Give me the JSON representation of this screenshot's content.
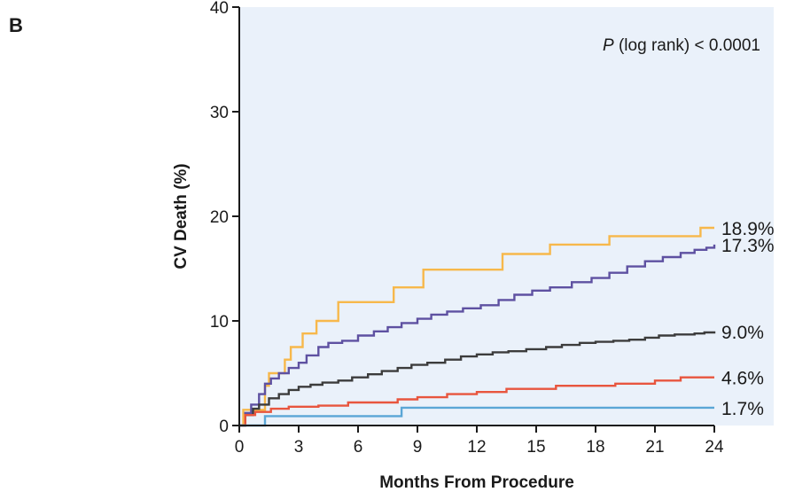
{
  "panel_label": "B",
  "chart_data": {
    "type": "line",
    "step": true,
    "title": "",
    "xlabel": "Months From Procedure",
    "ylabel": "CV Death (%)",
    "xlim": [
      0,
      27
    ],
    "ylim": [
      0,
      40
    ],
    "xticks": [
      0,
      3,
      6,
      9,
      12,
      15,
      18,
      21,
      24
    ],
    "yticks": [
      0,
      10,
      20,
      30,
      40
    ],
    "x_tick_labels": [
      "0",
      "3",
      "6",
      "9",
      "12",
      "15",
      "18",
      "21",
      "24"
    ],
    "y_tick_labels": [
      "0",
      "10",
      "20",
      "30",
      "40"
    ],
    "plot_background": "#eaf1fa",
    "grid": false,
    "annotation": {
      "italic_part": "P",
      "rest": " (log rank) < 0.0001"
    },
    "series": [
      {
        "color": "#f7b84b",
        "end_label": "18.9%",
        "x": [
          0,
          0.2,
          0.5,
          1.0,
          1.3,
          1.5,
          2.0,
          2.3,
          2.6,
          3.0,
          3.2,
          3.5,
          3.9,
          4.4,
          5.0,
          5.7,
          6.1,
          6.6,
          7.3,
          7.8,
          8.5,
          9.3,
          10.2,
          11.0,
          12.0,
          13.0,
          13.3,
          14.5,
          15.7,
          17.0,
          18.0,
          18.7,
          19.5,
          21.0,
          23.3,
          24.0
        ],
        "y": [
          0,
          1.5,
          1.5,
          1.5,
          3.8,
          5.0,
          5.0,
          6.3,
          7.5,
          7.5,
          8.8,
          8.8,
          10.0,
          10.0,
          11.8,
          11.8,
          11.8,
          11.8,
          11.8,
          13.2,
          13.2,
          14.9,
          14.9,
          14.9,
          14.9,
          14.9,
          16.4,
          16.4,
          17.3,
          17.3,
          17.3,
          18.1,
          18.1,
          18.1,
          18.9,
          18.9
        ]
      },
      {
        "color": "#5e51a1",
        "end_label": "17.3%",
        "x": [
          0,
          0.3,
          0.6,
          1.0,
          1.3,
          1.6,
          2.0,
          2.5,
          3.0,
          3.4,
          4.0,
          4.5,
          5.2,
          6.0,
          6.8,
          7.5,
          8.2,
          9.0,
          9.7,
          10.5,
          11.3,
          12.2,
          13.1,
          13.9,
          14.8,
          15.7,
          16.8,
          17.8,
          18.7,
          19.6,
          20.5,
          21.4,
          22.3,
          23.0,
          23.6,
          24.0
        ],
        "y": [
          0,
          1.2,
          2.0,
          3.0,
          4.0,
          4.5,
          5.0,
          5.5,
          6.0,
          6.7,
          7.5,
          7.9,
          8.1,
          8.6,
          9.0,
          9.4,
          9.8,
          10.2,
          10.6,
          10.9,
          11.2,
          11.5,
          12.0,
          12.5,
          12.9,
          13.2,
          13.7,
          14.1,
          14.6,
          15.2,
          15.7,
          16.1,
          16.5,
          16.8,
          17.0,
          17.3
        ]
      },
      {
        "color": "#3c3c3c",
        "end_label": "9.0%",
        "x": [
          0,
          0.3,
          0.7,
          1.0,
          1.5,
          2.0,
          2.5,
          3.0,
          3.6,
          4.2,
          5.0,
          5.7,
          6.5,
          7.2,
          8.0,
          8.7,
          9.5,
          10.4,
          11.2,
          12.0,
          12.8,
          13.6,
          14.5,
          15.5,
          16.3,
          17.2,
          18.0,
          18.9,
          19.7,
          20.5,
          21.2,
          22.0,
          23.0,
          23.5,
          24.0
        ],
        "y": [
          0,
          1.0,
          1.6,
          2.0,
          2.6,
          3.0,
          3.4,
          3.7,
          3.9,
          4.1,
          4.3,
          4.6,
          4.9,
          5.2,
          5.5,
          5.8,
          6.0,
          6.3,
          6.6,
          6.8,
          7.0,
          7.1,
          7.3,
          7.5,
          7.7,
          7.9,
          8.0,
          8.1,
          8.2,
          8.4,
          8.6,
          8.7,
          8.8,
          8.9,
          9.0
        ]
      },
      {
        "color": "#e8553e",
        "end_label": "4.6%",
        "x": [
          0,
          0.3,
          0.8,
          1.6,
          2.5,
          4.0,
          5.5,
          8.0,
          9.0,
          10.5,
          12.0,
          13.5,
          16.0,
          19.0,
          21.0,
          22.3,
          23.0,
          24.0
        ],
        "y": [
          0,
          1.0,
          1.3,
          1.6,
          1.8,
          1.9,
          2.2,
          2.5,
          2.7,
          3.0,
          3.2,
          3.5,
          3.8,
          4.0,
          4.3,
          4.6,
          4.6,
          4.6
        ]
      },
      {
        "color": "#5aa6d6",
        "end_label": "1.7%",
        "x": [
          0,
          0.3,
          1.3,
          8.2,
          24.0
        ],
        "y": [
          0,
          0,
          0.9,
          1.7,
          1.7
        ]
      }
    ]
  }
}
